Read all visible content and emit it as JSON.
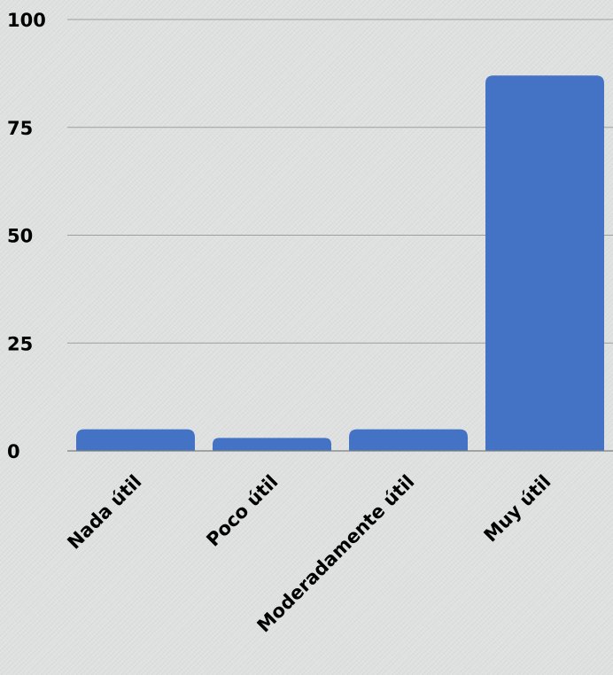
{
  "chart_data": {
    "type": "bar",
    "title": "",
    "xlabel": "",
    "ylabel": "",
    "categories": [
      "Nada útil",
      "Poco útil",
      "Moderadamente útil",
      "Muy útil"
    ],
    "values": [
      5,
      3,
      5,
      87
    ],
    "ylim": [
      0,
      100
    ],
    "yticks": [
      0,
      25,
      50,
      75,
      100
    ],
    "grid": true,
    "legend": "none",
    "bar_color": "#4472c4"
  }
}
